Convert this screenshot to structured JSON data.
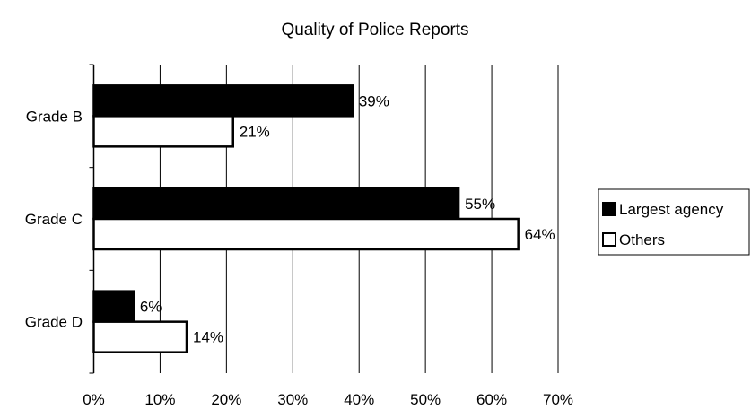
{
  "chart_data": {
    "type": "bar",
    "orientation": "horizontal",
    "title": "Quality of Police Reports",
    "categories": [
      "Grade B",
      "Grade C",
      "Grade D"
    ],
    "series": [
      {
        "name": "Largest agency",
        "values": [
          39,
          55,
          6
        ],
        "labels": [
          "39%",
          "55%",
          "6%"
        ],
        "color": "#000000"
      },
      {
        "name": "Others",
        "values": [
          21,
          64,
          14
        ],
        "labels": [
          "21%",
          "64%",
          "14%"
        ],
        "color": "#ffffff"
      }
    ],
    "xlim": [
      0,
      70
    ],
    "x_ticks": [
      "0%",
      "10%",
      "20%",
      "30%",
      "40%",
      "50%",
      "60%",
      "70%"
    ],
    "grid": "vertical",
    "legend": "right"
  }
}
